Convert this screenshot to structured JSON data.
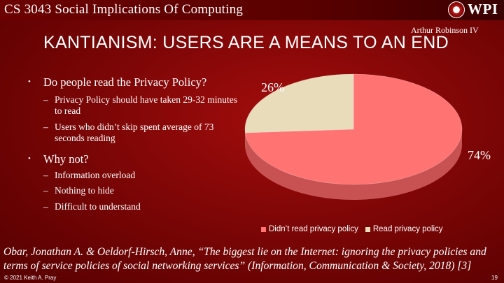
{
  "header": {
    "course_title": "CS 3043 Social Implications Of Computing",
    "logo_text": "WPI"
  },
  "author": "Arthur Robinson IV",
  "title": "KANTIANISM: USERS ARE A MEANS TO AN END",
  "bullets": [
    {
      "text": "Do people read the Privacy Policy?",
      "sub": [
        "Privacy Policy should have taken 29-32 minutes to read",
        "Users who didn’t skip spent average of 73 seconds reading"
      ]
    },
    {
      "text": "Why not?",
      "sub": [
        "Information overload",
        "Nothing to hide",
        "Difficult to understand"
      ]
    }
  ],
  "chart_data": {
    "type": "pie",
    "style": "3d",
    "title": "",
    "categories": [
      "Didn’t read privacy policy",
      "Read privacy policy"
    ],
    "values": [
      74,
      26
    ],
    "labels": [
      "74%",
      "26%"
    ],
    "colors": [
      "#ff7373",
      "#e9dcbb"
    ],
    "side_colors": [
      "#c85252",
      "#bfb08a"
    ],
    "legend_position": "bottom"
  },
  "citation": "Obar, Jonathan A. & Oeldorf-Hirsch, Anne, “The biggest lie on the Internet: ignoring the privacy policies and terms of service policies of social networking services” (Information, Communication & Society, 2018) [3]",
  "footer": {
    "copyright": "© 2021 Keith A. Pray",
    "page_number": "19"
  }
}
